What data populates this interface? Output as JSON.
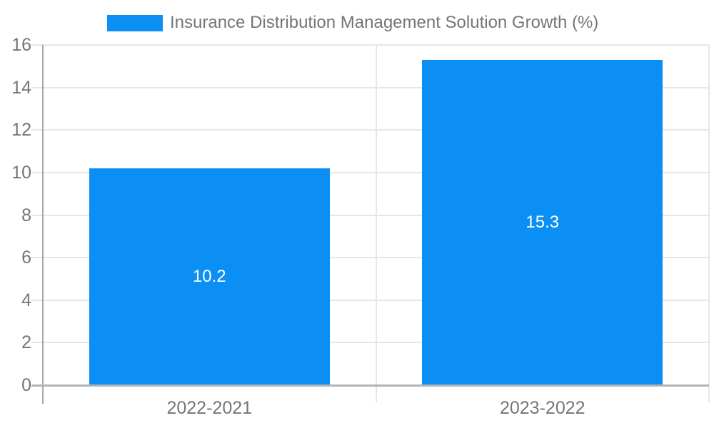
{
  "chart_data": {
    "type": "bar",
    "title": "Insurance Distribution Management Solution Growth (%)",
    "categories": [
      "2022-2021",
      "2023-2022"
    ],
    "series": [
      {
        "name": "Insurance Distribution Management Solution Growth (%)",
        "values": [
          10.2,
          15.3
        ]
      }
    ],
    "value_labels": [
      "10.2",
      "15.3"
    ],
    "ytick_labels": [
      "0",
      "2",
      "4",
      "6",
      "8",
      "10",
      "12",
      "14",
      "16"
    ],
    "xlabel": "",
    "ylabel": "",
    "ylim": [
      0,
      16
    ],
    "ytick_step": 2,
    "grid": true,
    "legend_position": "top",
    "colors": {
      "bar": "#0b8ff4",
      "bar_value_text": "#ffffff",
      "axis_text": "#757575",
      "gridline": "#e6e6e6",
      "axis_line": "#a8a8a8",
      "baseline": "#b3b3b3",
      "background": "#ffffff"
    }
  }
}
